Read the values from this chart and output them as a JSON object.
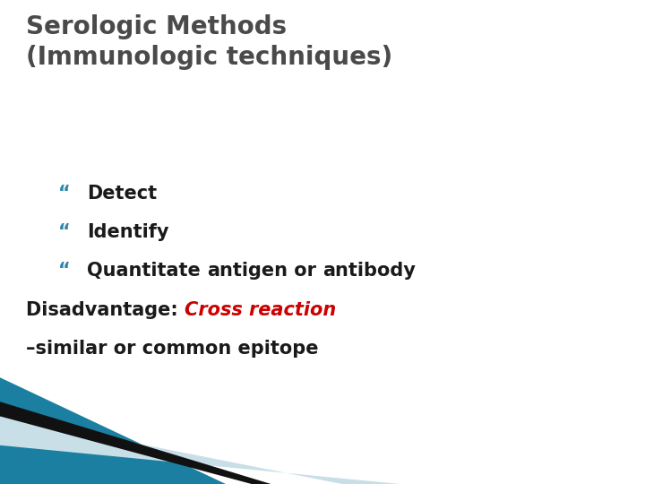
{
  "title_line1": "Serologic Methods",
  "title_line2": "(Immunologic techniques)",
  "title_color": "#4a4a4a",
  "title_fontsize": 20,
  "bullet_char": "“",
  "bullet_color": "#2e86ab",
  "bullet_fontsize": 15,
  "disadvantage_label": "Disadvantage: ",
  "disadvantage_italic_red": "Cross reaction",
  "disadvantage_line2": "–similar or common epitope",
  "disadvantage_color": "#1a1a1a",
  "disadvantage_red": "#cc0000",
  "disadvantage_fontsize": 15,
  "bg_color": "#ffffff",
  "teal_color": "#1a7fa0",
  "light_blue_color": "#c8dfe8",
  "black_color": "#111111"
}
